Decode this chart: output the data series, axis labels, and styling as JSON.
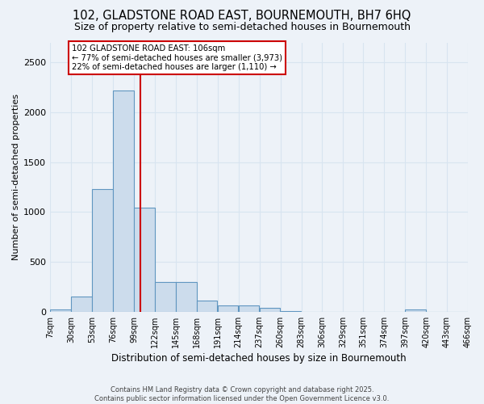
{
  "title1": "102, GLADSTONE ROAD EAST, BOURNEMOUTH, BH7 6HQ",
  "title2": "Size of property relative to semi-detached houses in Bournemouth",
  "xlabel": "Distribution of semi-detached houses by size in Bournemouth",
  "ylabel": "Number of semi-detached properties",
  "bin_edges": [
    7,
    30,
    53,
    76,
    99,
    122,
    145,
    168,
    191,
    214,
    237,
    260,
    283,
    306,
    329,
    351,
    374,
    397,
    420,
    443,
    466
  ],
  "bar_heights": [
    20,
    150,
    1230,
    2220,
    1040,
    300,
    295,
    110,
    65,
    60,
    40,
    5,
    0,
    0,
    0,
    0,
    0,
    25,
    0,
    0
  ],
  "bar_color": "#ccdcec",
  "bar_edge_color": "#6096c0",
  "property_size": 106,
  "red_line_color": "#cc0000",
  "annotation_text": "102 GLADSTONE ROAD EAST: 106sqm\n← 77% of semi-detached houses are smaller (3,973)\n22% of semi-detached houses are larger (1,110) →",
  "annotation_box_color": "#ffffff",
  "annotation_border_color": "#cc0000",
  "ylim": [
    0,
    2700
  ],
  "yticks": [
    0,
    500,
    1000,
    1500,
    2000,
    2500
  ],
  "background_color": "#edf2f8",
  "grid_color": "#d8e4f0",
  "footer_text": "Contains HM Land Registry data © Crown copyright and database right 2025.\nContains public sector information licensed under the Open Government Licence v3.0.",
  "tick_label_fontsize": 7,
  "title_fontsize": 10.5,
  "subtitle_fontsize": 9
}
